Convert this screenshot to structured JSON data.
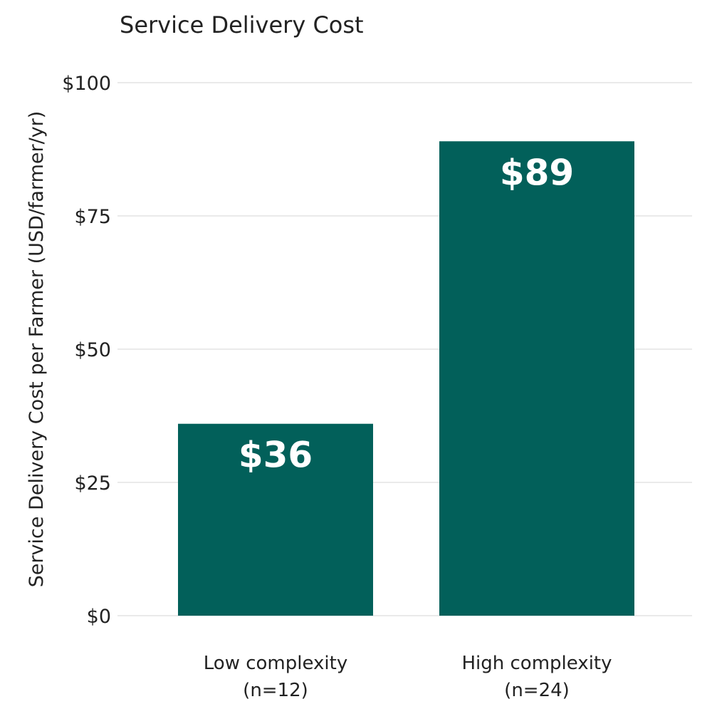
{
  "chart_data": {
    "type": "bar",
    "title": "Service Delivery Cost",
    "xlabel": "",
    "ylabel": "Service Delivery Cost per Farmer (USD/farmer/yr)",
    "categories": [
      {
        "line1": "Low complexity",
        "line2": "(n=12)"
      },
      {
        "line1": "High complexity",
        "line2": "(n=24)"
      }
    ],
    "values": [
      36,
      89
    ],
    "data_labels": [
      "$36",
      "$89"
    ],
    "ylim": [
      0,
      100
    ],
    "yticks": [
      0,
      25,
      50,
      75,
      100
    ],
    "ytick_labels": [
      "$0",
      "$25",
      "$50",
      "$75",
      "$100"
    ],
    "grid": "horizontal",
    "bar_color": "#02605A",
    "label_color": "#ffffff"
  }
}
